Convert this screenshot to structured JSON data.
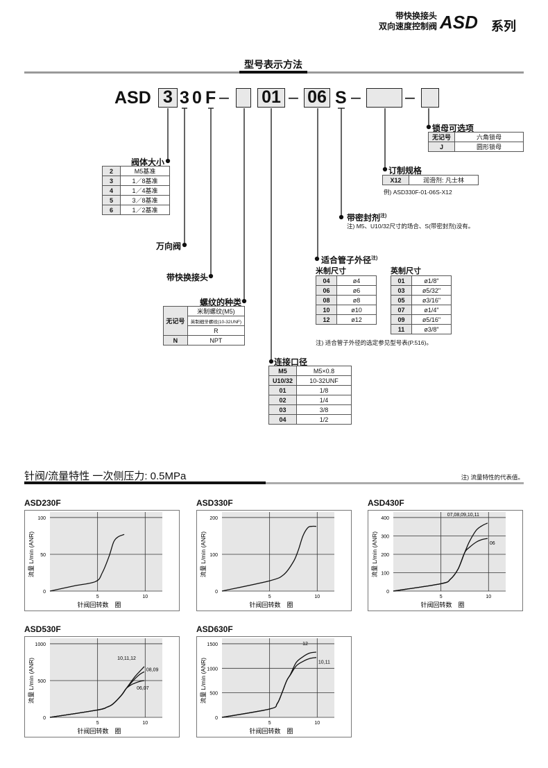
{
  "header": {
    "line1": "带快换接头",
    "line2": "双向速度控制阀",
    "brand": "ASD",
    "series": "系列"
  },
  "model_section": {
    "title": "型号表示方法",
    "code": {
      "prefix": "ASD",
      "size_box": "3",
      "c1": "3",
      "c2": "0",
      "c3": "F",
      "dash": "–",
      "port_box": "01",
      "tube_box": "06",
      "sealant": "S"
    },
    "body_size": {
      "label": "阀体大小",
      "rows": [
        [
          "2",
          "M5基准"
        ],
        [
          "3",
          "1／8基准"
        ],
        [
          "4",
          "1／4基准"
        ],
        [
          "5",
          "3／8基准"
        ],
        [
          "6",
          "1／2基准"
        ]
      ]
    },
    "universal_label": "万向阀",
    "quick_fitting_label": "带快换接头",
    "thread_type": {
      "label": "螺纹的种类",
      "no_mark": "无记号",
      "no_mark_values": [
        "米制螺纹(M5)",
        "英制细牙螺纹(10-32UNF)",
        "R"
      ],
      "rows": [
        [
          "N",
          "NPT"
        ]
      ]
    },
    "port_size": {
      "label": "连接口径",
      "rows": [
        [
          "M5",
          "M5×0.8"
        ],
        [
          "U10/32",
          "10-32UNF"
        ],
        [
          "01",
          "1/8"
        ],
        [
          "02",
          "1/4"
        ],
        [
          "03",
          "3/8"
        ],
        [
          "04",
          "1/2"
        ]
      ]
    },
    "tube_od": {
      "label": "适合管子外径",
      "sup": "注)",
      "metric_label": "米制尺寸",
      "metric_rows": [
        [
          "04",
          "ø4"
        ],
        [
          "06",
          "ø6"
        ],
        [
          "08",
          "ø8"
        ],
        [
          "10",
          "ø10"
        ],
        [
          "12",
          "ø12"
        ]
      ],
      "inch_label": "英制尺寸",
      "inch_rows": [
        [
          "01",
          "ø1/8\""
        ],
        [
          "03",
          "ø5/32\""
        ],
        [
          "05",
          "ø3/16\""
        ],
        [
          "07",
          "ø1/4\""
        ],
        [
          "09",
          "ø5/16\""
        ],
        [
          "11",
          "ø3/8\""
        ]
      ],
      "note": "注) 适合管子外径的选定参见型号表(P.516)。"
    },
    "sealant": {
      "label": "带密封剂",
      "sup": "注)",
      "note": "注) M5、U10/32尺寸的场合、S(带密封剂)没有。"
    },
    "custom": {
      "label": "订制规格",
      "rows": [
        [
          "X12",
          "润滑剂: 凡士林"
        ]
      ],
      "example": "例) ASD330F-01-06S-X12"
    },
    "lock_nut": {
      "label": "锁母可选项",
      "rows": [
        [
          "无记号",
          "六角锁母"
        ],
        [
          "J",
          "圆形锁母"
        ]
      ]
    }
  },
  "flow_section": {
    "title": "针阀/流量特性  一次侧压力: 0.5MPa",
    "note": "注) 流量特性的代表值。"
  },
  "chart_data": [
    {
      "type": "line",
      "title": "ASD230F",
      "ylabel": "流量  L/min (ANR)",
      "xlabel": "针阀回转数　圈",
      "xlim": [
        0,
        12
      ],
      "ylim": [
        0,
        100
      ],
      "xticks": [
        5,
        10
      ],
      "yticks": [
        0,
        50,
        100
      ],
      "grid": true,
      "series": [
        {
          "points": [
            [
              0,
              0
            ],
            [
              2.5,
              7
            ],
            [
              4.8,
              13
            ],
            [
              5.5,
              25
            ],
            [
              6.2,
              47
            ],
            [
              6.7,
              67
            ],
            [
              7.2,
              74
            ],
            [
              7.8,
              77
            ]
          ]
        }
      ]
    },
    {
      "type": "line",
      "title": "ASD330F",
      "ylabel": "流量  L/min (ANR)",
      "xlabel": "针阀回转数　圈",
      "xlim": [
        0,
        12
      ],
      "ylim": [
        0,
        200
      ],
      "xticks": [
        5,
        10
      ],
      "yticks": [
        0,
        100,
        200
      ],
      "grid": true,
      "series": [
        {
          "points": [
            [
              0,
              0
            ],
            [
              5,
              28
            ],
            [
              6.5,
              45
            ],
            [
              7.5,
              80
            ],
            [
              8,
              110
            ],
            [
              8.5,
              150
            ],
            [
              9,
              172
            ],
            [
              9.4,
              176
            ],
            [
              9.9,
              176
            ]
          ]
        }
      ]
    },
    {
      "type": "line",
      "title": "ASD430F",
      "ylabel": "流量  L/min (ANR)",
      "xlabel": "针阀回转数　圈",
      "xlim": [
        0,
        12
      ],
      "ylim": [
        0,
        400
      ],
      "xticks": [
        5,
        10
      ],
      "yticks": [
        0,
        100,
        200,
        300,
        400
      ],
      "grid": true,
      "series": [
        {
          "name": "07,08,09,10,11",
          "label_pos": "above-left",
          "points": [
            [
              0,
              0
            ],
            [
              5,
              40
            ],
            [
              6,
              65
            ],
            [
              6.8,
              120
            ],
            [
              7.5,
              210
            ],
            [
              8,
              270
            ],
            [
              8.7,
              330
            ],
            [
              9.3,
              355
            ],
            [
              9.9,
              370
            ]
          ]
        },
        {
          "name": "06",
          "label_pos": "right",
          "points": [
            [
              0,
              0
            ],
            [
              5,
              40
            ],
            [
              6,
              65
            ],
            [
              6.8,
              120
            ],
            [
              7.5,
              210
            ],
            [
              8,
              238
            ],
            [
              8.7,
              266
            ],
            [
              9.3,
              280
            ],
            [
              9.9,
              286
            ]
          ]
        }
      ]
    },
    {
      "type": "line",
      "title": "ASD530F",
      "ylabel": "流量  L/min (ANR)",
      "xlabel": "针阀回转数　圈",
      "xlim": [
        0,
        12
      ],
      "ylim": [
        0,
        1000
      ],
      "xticks": [
        5,
        10
      ],
      "yticks": [
        0,
        500,
        1000
      ],
      "grid": true,
      "series": [
        {
          "name": "10,11,12",
          "label_pos": "above-left",
          "points": [
            [
              0,
              0
            ],
            [
              5,
              100
            ],
            [
              6,
              140
            ],
            [
              6.6,
              180
            ],
            [
              7.5,
              300
            ],
            [
              8,
              390
            ],
            [
              8.5,
              480
            ],
            [
              9,
              565
            ],
            [
              9.5,
              635
            ],
            [
              9.9,
              690
            ]
          ]
        },
        {
          "name": "08,09",
          "label_pos": "right",
          "points": [
            [
              0,
              0
            ],
            [
              5,
              100
            ],
            [
              6,
              140
            ],
            [
              6.6,
              180
            ],
            [
              7.5,
              300
            ],
            [
              8,
              390
            ],
            [
              8.5,
              465
            ],
            [
              9,
              535
            ],
            [
              9.5,
              590
            ],
            [
              9.9,
              620
            ]
          ]
        },
        {
          "name": "06,07",
          "label_pos": "below-right",
          "points": [
            [
              0,
              0
            ],
            [
              5,
              100
            ],
            [
              6,
              140
            ],
            [
              6.6,
              180
            ],
            [
              7.5,
              300
            ],
            [
              8,
              390
            ],
            [
              8.5,
              440
            ],
            [
              9,
              470
            ],
            [
              9.5,
              490
            ],
            [
              9.9,
              500
            ]
          ]
        }
      ]
    },
    {
      "type": "line",
      "title": "ASD630F",
      "ylabel": "流量  L/min (ANR)",
      "xlabel": "针阀回转数　圈",
      "xlim": [
        0,
        12
      ],
      "ylim": [
        0,
        1500
      ],
      "xticks": [
        5,
        10
      ],
      "yticks": [
        0,
        500,
        1000,
        1500
      ],
      "grid": true,
      "series": [
        {
          "name": "12",
          "label_pos": "above-left",
          "points": [
            [
              0,
              0
            ],
            [
              5,
              170
            ],
            [
              5.8,
              280
            ],
            [
              6.3,
              500
            ],
            [
              6.8,
              750
            ],
            [
              7.2,
              880
            ],
            [
              7.8,
              1120
            ],
            [
              8.5,
              1235
            ],
            [
              9.2,
              1310
            ],
            [
              9.9,
              1330
            ]
          ]
        },
        {
          "name": "10,11",
          "label_pos": "right",
          "points": [
            [
              0,
              0
            ],
            [
              5,
              170
            ],
            [
              5.8,
              280
            ],
            [
              6.3,
              500
            ],
            [
              6.8,
              750
            ],
            [
              7.2,
              870
            ],
            [
              7.8,
              1050
            ],
            [
              8.5,
              1140
            ],
            [
              9.2,
              1200
            ],
            [
              9.9,
              1220
            ]
          ]
        }
      ]
    }
  ]
}
